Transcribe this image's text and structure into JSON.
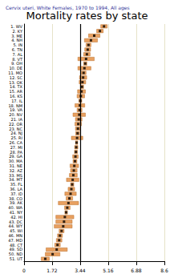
{
  "chart_data": {
    "type": "dot",
    "title": "Mortality rates by state",
    "subtitle": "Cervix uteri, White Females, 1970 to 1994, All ages",
    "orientation": "horizontal",
    "categories": [
      "1. WV",
      "2. KY",
      "3. ME",
      "4. NH",
      "5. IN",
      "6. TN",
      "7. AL",
      "8. VT",
      "9. OH",
      "10. DE",
      "11. MO",
      "12. SC",
      "13. OK",
      "14. TX",
      "15. AR",
      "16. KS",
      "17. IL",
      "18. NM",
      "19. VA",
      "20. NV",
      "21. IA",
      "22. OR",
      "23. NC",
      "24. NJ",
      "25. RI",
      "26. CA",
      "27. MI",
      "28. PA",
      "29. GA",
      "30. MA",
      "31. NE",
      "32. AZ",
      "33. MS",
      "34. MT",
      "35. FL",
      "36. LA",
      "37. ID",
      "38. CO",
      "39. AK",
      "40. WA",
      "41. NY",
      "42. HI",
      "43. DC",
      "44. WY",
      "45. WI",
      "46. MN",
      "47. MD",
      "48. CT",
      "49. SD",
      "50. ND",
      "51. UT"
    ],
    "values": [
      4.9,
      4.65,
      4.3,
      4.1,
      3.95,
      3.9,
      3.85,
      3.8,
      3.75,
      3.7,
      3.65,
      3.62,
      3.58,
      3.55,
      3.52,
      3.48,
      3.45,
      3.42,
      3.4,
      3.38,
      3.35,
      3.32,
      3.3,
      3.28,
      3.25,
      3.22,
      3.2,
      3.18,
      3.15,
      3.12,
      3.08,
      3.05,
      3.02,
      2.98,
      2.95,
      2.9,
      2.85,
      2.78,
      2.72,
      2.65,
      2.58,
      2.5,
      2.45,
      2.4,
      2.3,
      2.2,
      2.15,
      2.05,
      2.0,
      1.75,
      1.3
    ],
    "ci_low": [
      4.7,
      4.45,
      3.95,
      3.7,
      3.8,
      3.72,
      3.65,
      3.3,
      3.65,
      3.3,
      3.5,
      3.4,
      3.38,
      3.45,
      3.28,
      3.25,
      3.36,
      3.12,
      3.25,
      3.0,
      3.15,
      3.12,
      3.15,
      3.16,
      2.9,
      3.15,
      3.1,
      3.09,
      2.98,
      3.0,
      2.82,
      2.85,
      2.78,
      2.6,
      2.85,
      2.7,
      2.5,
      2.58,
      2.1,
      2.48,
      2.5,
      1.95,
      1.95,
      1.85,
      2.15,
      2.05,
      1.98,
      1.88,
      1.35,
      1.3,
      1.05
    ],
    "ci_high": [
      5.1,
      4.85,
      4.65,
      4.5,
      4.1,
      4.08,
      4.05,
      4.3,
      3.85,
      4.1,
      3.8,
      3.84,
      3.78,
      3.65,
      3.76,
      3.71,
      3.54,
      3.72,
      3.55,
      3.76,
      3.55,
      3.52,
      3.45,
      3.4,
      3.6,
      3.29,
      3.3,
      3.27,
      3.32,
      3.24,
      3.34,
      3.25,
      3.26,
      3.36,
      3.05,
      3.1,
      3.2,
      2.98,
      3.34,
      2.82,
      2.66,
      3.05,
      2.95,
      2.95,
      2.45,
      2.35,
      2.32,
      2.22,
      2.65,
      2.2,
      1.55
    ],
    "reference_value": 3.44,
    "xlim": [
      0,
      8.6
    ],
    "xticks": [
      0,
      1.72,
      3.44,
      5.16,
      6.88,
      8.6
    ],
    "grid": true,
    "color": "#e8a060",
    "marker": "square"
  }
}
